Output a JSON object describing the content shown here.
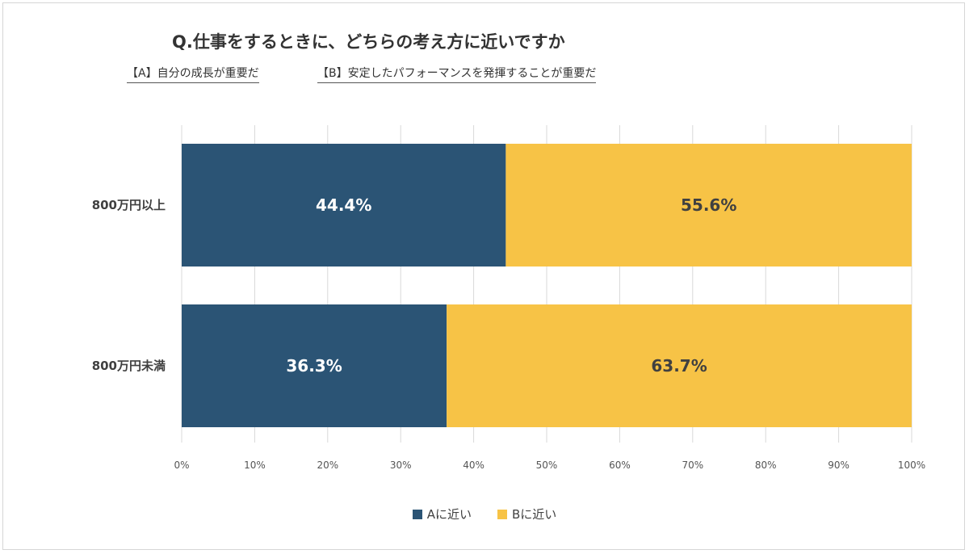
{
  "header": {
    "title": "Q.仕事をするときに、どちらの考え方に近いですか",
    "option_a": "【A】自分の成長が重要だ",
    "option_b": "【B】安定したパフォーマンスを発揮することが重要だ"
  },
  "chart_data": {
    "type": "bar",
    "orientation": "horizontal",
    "stacked": true,
    "title": "Q.仕事をするときに、どちらの考え方に近いですか",
    "categories": [
      "800万円以上",
      "800万円未満"
    ],
    "series": [
      {
        "name": "Aに近い",
        "values": [
          44.4,
          36.3
        ],
        "labels": [
          "44.4%",
          "36.3%"
        ],
        "color": "#2b5475",
        "label_color": "#ffffff"
      },
      {
        "name": "Bに近い",
        "values": [
          55.6,
          63.7
        ],
        "labels": [
          "55.6%",
          "63.7%"
        ],
        "color": "#f7c346",
        "label_color": "#404040"
      }
    ],
    "xlim": [
      0,
      100
    ],
    "x_ticks": [
      0,
      10,
      20,
      30,
      40,
      50,
      60,
      70,
      80,
      90,
      100
    ],
    "x_tick_labels": [
      "0%",
      "10%",
      "20%",
      "30%",
      "40%",
      "50%",
      "60%",
      "70%",
      "80%",
      "90%",
      "100%"
    ],
    "grid": true,
    "legend_position": "bottom"
  }
}
